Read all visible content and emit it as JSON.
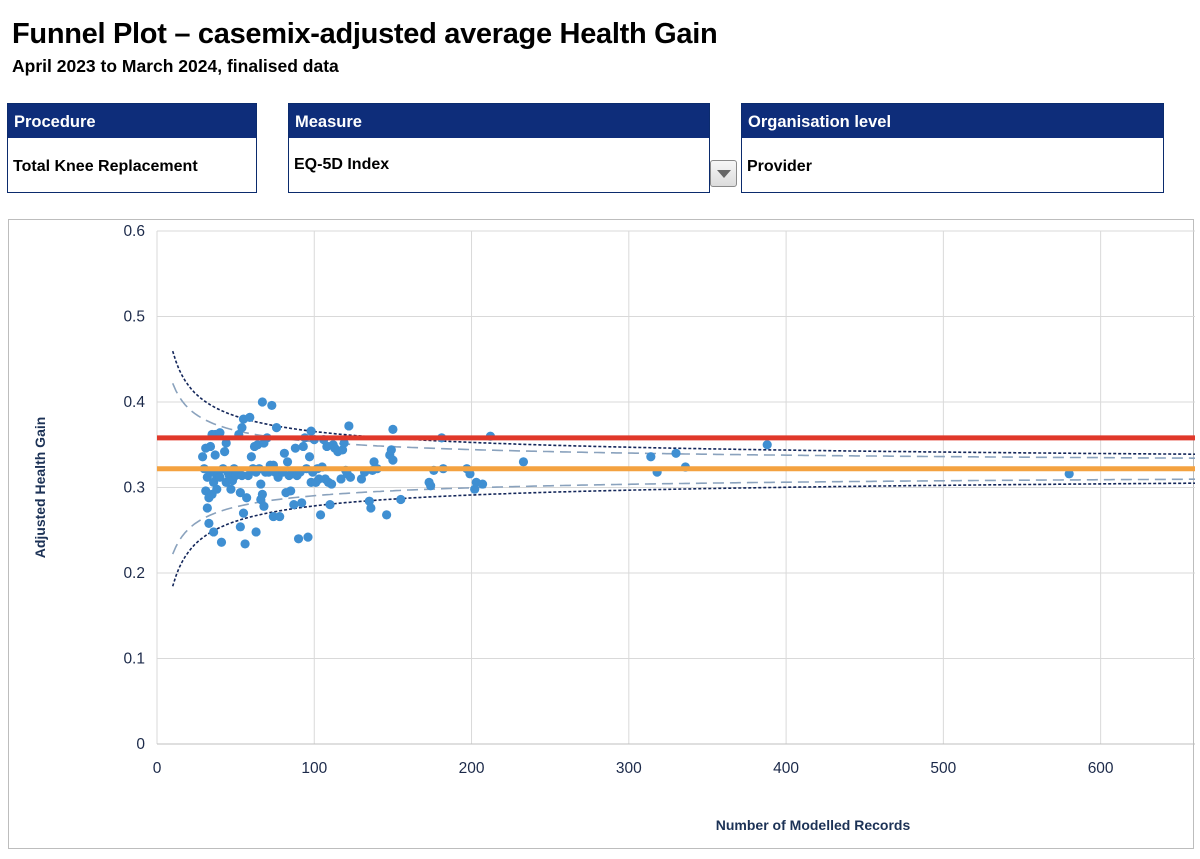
{
  "header": {
    "title": "Funnel Plot – casemix-adjusted average Health Gain",
    "subtitle": "April 2023 to March 2024, finalised data"
  },
  "filters": {
    "procedure": {
      "label": "Procedure",
      "value": "Total Knee Replacement"
    },
    "measure": {
      "label": "Measure",
      "value": "EQ-5D Index"
    },
    "organisation_level": {
      "label": "Organisation level",
      "value": "Provider"
    }
  },
  "colors": {
    "header_fill": "#0e2d7a",
    "points": "#3f8fd2",
    "upper_reference": "#e0382a",
    "lower_reference": "#f4a240",
    "limit_99": "#13265a",
    "limit_95": "#8aa2bd",
    "grid": "#d9d9d9"
  },
  "chart_data": {
    "type": "scatter",
    "title": "",
    "xlabel": "Number of Modelled Records",
    "ylabel": "Adjusted Health Gain",
    "xlim": [
      0,
      660
    ],
    "ylim": [
      0,
      0.6
    ],
    "x_ticks": [
      0,
      100,
      200,
      300,
      400,
      500,
      600
    ],
    "x_tick_labels": [
      "0",
      "100",
      "200",
      "300",
      "400",
      "500",
      "600"
    ],
    "y_ticks": [
      0,
      0.1,
      0.2,
      0.3,
      0.4,
      0.5,
      0.6
    ],
    "y_tick_labels": [
      "0",
      "0.1",
      "0.2",
      "0.3",
      "0.4",
      "0.5",
      "0.6"
    ],
    "grid": true,
    "reference_lines": [
      {
        "name": "upper reference",
        "y": 0.358
      },
      {
        "name": "national average",
        "y": 0.322
      }
    ],
    "control_limits": {
      "center": 0.322,
      "sd_99_8": 0.435,
      "sd_95": 0.316,
      "x_start": 10
    },
    "series": [
      {
        "name": "Providers",
        "points": [
          [
            29,
            0.336
          ],
          [
            30,
            0.322
          ],
          [
            31,
            0.346
          ],
          [
            31,
            0.296
          ],
          [
            32,
            0.276
          ],
          [
            32,
            0.312
          ],
          [
            33,
            0.258
          ],
          [
            33,
            0.288
          ],
          [
            34,
            0.348
          ],
          [
            34,
            0.318
          ],
          [
            35,
            0.362
          ],
          [
            35,
            0.292
          ],
          [
            36,
            0.306
          ],
          [
            36,
            0.248
          ],
          [
            37,
            0.362
          ],
          [
            37,
            0.338
          ],
          [
            38,
            0.298
          ],
          [
            38,
            0.312
          ],
          [
            39,
            0.316
          ],
          [
            40,
            0.364
          ],
          [
            40,
            0.312
          ],
          [
            41,
            0.236
          ],
          [
            42,
            0.322
          ],
          [
            43,
            0.342
          ],
          [
            44,
            0.352
          ],
          [
            44,
            0.306
          ],
          [
            45,
            0.318
          ],
          [
            46,
            0.314
          ],
          [
            47,
            0.298
          ],
          [
            48,
            0.308
          ],
          [
            49,
            0.322
          ],
          [
            50,
            0.314
          ],
          [
            51,
            0.318
          ],
          [
            52,
            0.362
          ],
          [
            53,
            0.294
          ],
          [
            53,
            0.254
          ],
          [
            54,
            0.37
          ],
          [
            54,
            0.314
          ],
          [
            55,
            0.38
          ],
          [
            55,
            0.27
          ],
          [
            56,
            0.234
          ],
          [
            57,
            0.288
          ],
          [
            58,
            0.314
          ],
          [
            59,
            0.382
          ],
          [
            60,
            0.336
          ],
          [
            61,
            0.322
          ],
          [
            62,
            0.348
          ],
          [
            63,
            0.318
          ],
          [
            63,
            0.248
          ],
          [
            64,
            0.35
          ],
          [
            65,
            0.322
          ],
          [
            66,
            0.304
          ],
          [
            66,
            0.286
          ],
          [
            67,
            0.4
          ],
          [
            67,
            0.292
          ],
          [
            68,
            0.352
          ],
          [
            68,
            0.278
          ],
          [
            69,
            0.318
          ],
          [
            70,
            0.358
          ],
          [
            71,
            0.318
          ],
          [
            72,
            0.326
          ],
          [
            73,
            0.396
          ],
          [
            73,
            0.324
          ],
          [
            74,
            0.326
          ],
          [
            74,
            0.266
          ],
          [
            75,
            0.318
          ],
          [
            76,
            0.37
          ],
          [
            77,
            0.312
          ],
          [
            78,
            0.266
          ],
          [
            80,
            0.318
          ],
          [
            81,
            0.34
          ],
          [
            82,
            0.294
          ],
          [
            83,
            0.33
          ],
          [
            84,
            0.314
          ],
          [
            85,
            0.296
          ],
          [
            86,
            0.318
          ],
          [
            87,
            0.28
          ],
          [
            88,
            0.346
          ],
          [
            89,
            0.314
          ],
          [
            90,
            0.24
          ],
          [
            91,
            0.318
          ],
          [
            92,
            0.282
          ],
          [
            93,
            0.348
          ],
          [
            94,
            0.358
          ],
          [
            95,
            0.322
          ],
          [
            96,
            0.242
          ],
          [
            97,
            0.336
          ],
          [
            98,
            0.366
          ],
          [
            98,
            0.306
          ],
          [
            99,
            0.318
          ],
          [
            100,
            0.356
          ],
          [
            101,
            0.306
          ],
          [
            102,
            0.322
          ],
          [
            103,
            0.31
          ],
          [
            104,
            0.268
          ],
          [
            105,
            0.324
          ],
          [
            106,
            0.356
          ],
          [
            107,
            0.31
          ],
          [
            108,
            0.348
          ],
          [
            109,
            0.306
          ],
          [
            110,
            0.28
          ],
          [
            111,
            0.304
          ],
          [
            112,
            0.35
          ],
          [
            113,
            0.346
          ],
          [
            115,
            0.342
          ],
          [
            117,
            0.31
          ],
          [
            118,
            0.344
          ],
          [
            119,
            0.352
          ],
          [
            120,
            0.32
          ],
          [
            121,
            0.316
          ],
          [
            122,
            0.372
          ],
          [
            123,
            0.312
          ],
          [
            130,
            0.31
          ],
          [
            132,
            0.318
          ],
          [
            135,
            0.284
          ],
          [
            136,
            0.276
          ],
          [
            137,
            0.32
          ],
          [
            138,
            0.33
          ],
          [
            140,
            0.322
          ],
          [
            146,
            0.268
          ],
          [
            148,
            0.338
          ],
          [
            149,
            0.344
          ],
          [
            150,
            0.368
          ],
          [
            150,
            0.332
          ],
          [
            155,
            0.286
          ],
          [
            173,
            0.306
          ],
          [
            174,
            0.302
          ],
          [
            176,
            0.32
          ],
          [
            181,
            0.358
          ],
          [
            182,
            0.322
          ],
          [
            197,
            0.322
          ],
          [
            199,
            0.316
          ],
          [
            202,
            0.298
          ],
          [
            203,
            0.306
          ],
          [
            207,
            0.304
          ],
          [
            212,
            0.36
          ],
          [
            233,
            0.33
          ],
          [
            314,
            0.336
          ],
          [
            318,
            0.318
          ],
          [
            330,
            0.34
          ],
          [
            336,
            0.324
          ],
          [
            388,
            0.35
          ],
          [
            580,
            0.316
          ]
        ]
      }
    ]
  }
}
